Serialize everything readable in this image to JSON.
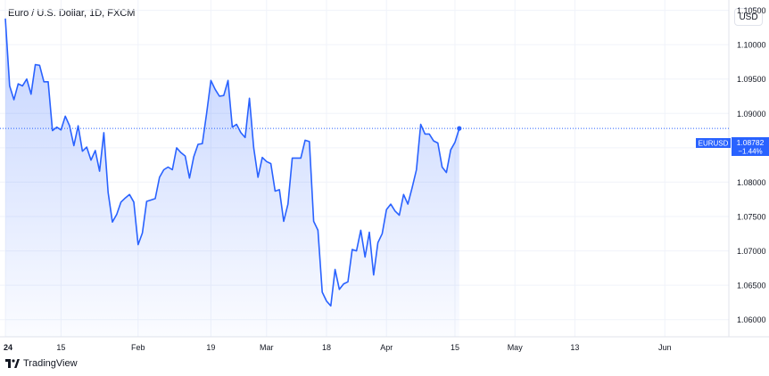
{
  "header": {
    "title": "Euro / U.S. Dollar, 1D, FXCM",
    "currency_button": "USD"
  },
  "price_tag": {
    "symbol": "EURUSD",
    "price": "1.08782",
    "change": "−1.44%",
    "color": "#2962ff"
  },
  "brand": {
    "name": "TradingView",
    "logo_icon": "tradingview-logo-icon"
  },
  "chart_data": {
    "type": "area",
    "title": "Euro / U.S. Dollar, 1D, FXCM",
    "xlabel": "",
    "ylabel": "",
    "ylim": [
      1.0575,
      1.1065
    ],
    "grid": true,
    "line_color": "#2962ff",
    "fill_color": "#2962ff",
    "last_value_line": 1.08782,
    "x_tick_labels": [
      "24",
      "15",
      "Feb",
      "19",
      "Mar",
      "18",
      "Apr",
      "15",
      "May",
      "13",
      "Jun"
    ],
    "y_tick_labels": [
      "1.10500",
      "1.10000",
      "1.09500",
      "1.09000",
      "1.08500",
      "1.08000",
      "1.07500",
      "1.07000",
      "1.06500",
      "1.06000"
    ],
    "y_ticks": [
      1.105,
      1.1,
      1.095,
      1.09,
      1.085,
      1.08,
      1.075,
      1.07,
      1.065,
      1.06
    ],
    "x_ticks": [
      0,
      13,
      31,
      48,
      61,
      75,
      89,
      105,
      119,
      133,
      154
    ],
    "values": [
      1.1038,
      1.094,
      1.092,
      1.0943,
      1.094,
      1.095,
      1.0928,
      1.0971,
      1.097,
      1.0946,
      1.0946,
      1.0875,
      1.088,
      1.0876,
      1.0896,
      1.0882,
      1.0853,
      1.0882,
      1.0845,
      1.0851,
      1.0832,
      1.0846,
      1.0816,
      1.0872,
      1.0785,
      1.0742,
      1.0753,
      1.0771,
      1.0777,
      1.0782,
      1.0771,
      1.0709,
      1.0726,
      1.0772,
      1.0774,
      1.0776,
      1.0807,
      1.0818,
      1.0822,
      1.0818,
      1.085,
      1.0843,
      1.0838,
      1.0806,
      1.0837,
      1.0855,
      1.0856,
      1.09,
      1.0948,
      1.0935,
      1.0925,
      1.0926,
      1.0948,
      1.088,
      1.0884,
      1.0872,
      1.0865,
      1.0922,
      1.085,
      1.0807,
      1.0836,
      1.083,
      1.0827,
      1.0787,
      1.0789,
      1.0743,
      1.0768,
      1.0835,
      1.0835,
      1.0835,
      1.0861,
      1.0859,
      1.0743,
      1.073,
      1.064,
      1.0627,
      1.062,
      1.0673,
      1.0644,
      1.0652,
      1.0655,
      1.0702,
      1.07,
      1.073,
      1.0691,
      1.0727,
      1.0665,
      1.0712,
      1.0725,
      1.076,
      1.0768,
      1.0758,
      1.0752,
      1.0782,
      1.0768,
      1.0792,
      1.0818,
      1.0884,
      1.087,
      1.087,
      1.086,
      1.0857,
      1.0822,
      1.0814,
      1.0847,
      1.0858,
      1.08782
    ]
  }
}
